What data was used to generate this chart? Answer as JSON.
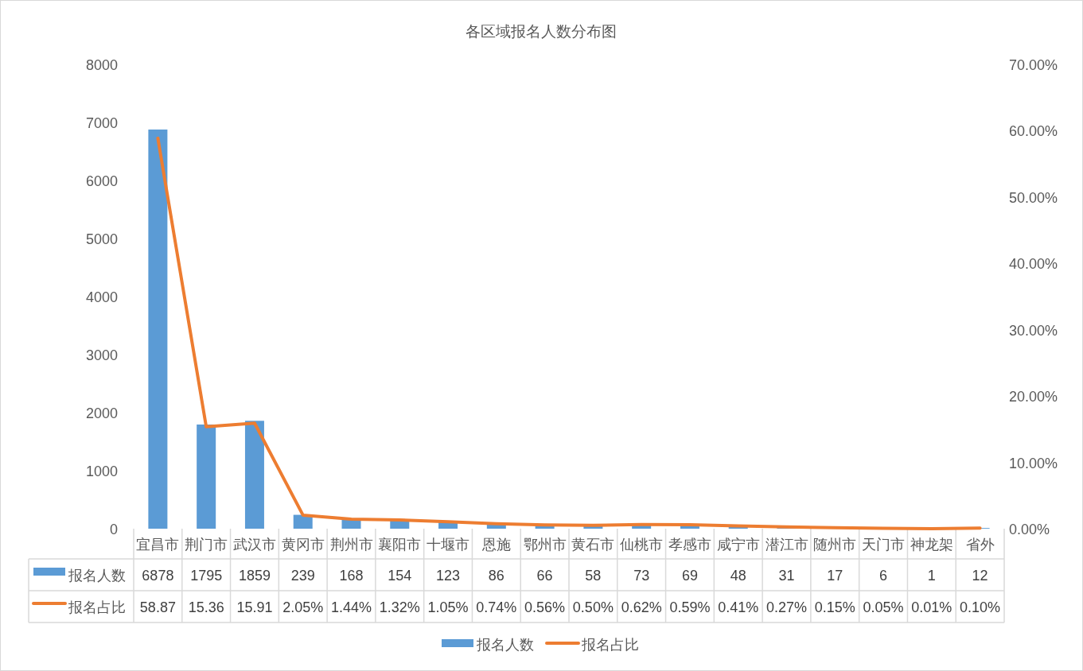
{
  "chart_data": {
    "type": "bar",
    "title": "各区域报名人数分布图",
    "categories": [
      "宜昌市",
      "荆门市",
      "武汉市",
      "黄冈市",
      "荆州市",
      "襄阳市",
      "十堰市",
      "恩施",
      "鄂州市",
      "黄石市",
      "仙桃市",
      "孝感市",
      "咸宁市",
      "潜江市",
      "随州市",
      "天门市",
      "神龙架",
      "省外"
    ],
    "series": [
      {
        "name": "报名人数",
        "color": "#5b9bd5",
        "values": [
          6878,
          1795,
          1859,
          239,
          168,
          154,
          123,
          86,
          66,
          58,
          73,
          69,
          48,
          31,
          17,
          6,
          1,
          12
        ]
      },
      {
        "name": "报名占比",
        "type": "line",
        "axis": "y2",
        "color": "#ed7d31",
        "values": [
          58.87,
          15.36,
          15.91,
          2.05,
          1.44,
          1.32,
          1.05,
          0.74,
          0.56,
          0.5,
          0.62,
          0.59,
          0.41,
          0.27,
          0.15,
          0.05,
          0.01,
          0.1
        ],
        "value_labels": [
          "58.87",
          "15.36",
          "15.91",
          "2.05%",
          "1.44%",
          "1.32%",
          "1.05%",
          "0.74%",
          "0.56%",
          "0.50%",
          "0.62%",
          "0.59%",
          "0.41%",
          "0.27%",
          "0.15%",
          "0.05%",
          "0.01%",
          "0.10%"
        ]
      }
    ],
    "ylim": [
      0,
      8000
    ],
    "yticks": [
      0,
      1000,
      2000,
      3000,
      4000,
      5000,
      6000,
      7000,
      8000
    ],
    "y2lim": [
      0,
      70
    ],
    "y2ticks": [
      {
        "value": 0,
        "label": "0.00%"
      },
      {
        "value": 10,
        "label": "10.00%"
      },
      {
        "value": 20,
        "label": "20.00%"
      },
      {
        "value": 30,
        "label": "30.00%"
      },
      {
        "value": 40,
        "label": "40.00%"
      },
      {
        "value": 50,
        "label": "50.00%"
      },
      {
        "value": 60,
        "label": "60.00%"
      },
      {
        "value": 70,
        "label": "70.00%"
      }
    ],
    "data_labels": true,
    "legend": "bottom"
  }
}
